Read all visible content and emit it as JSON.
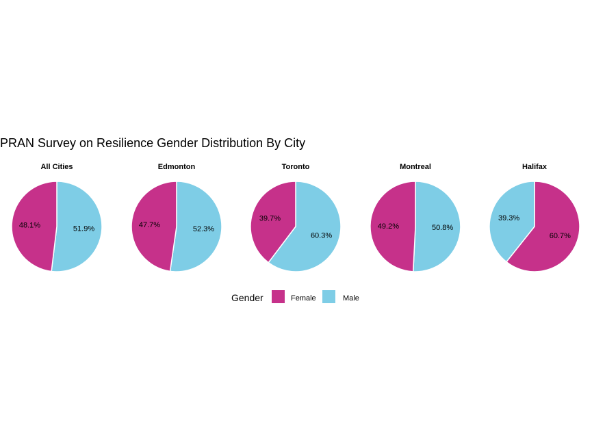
{
  "chart_data": {
    "type": "pie",
    "title": "PRAN Survey on Resilience Gender Distribution By City",
    "legend": {
      "title": "Gender",
      "placement": "bottom",
      "entries": [
        {
          "name": "Female",
          "color": "#C6318A"
        },
        {
          "name": "Male",
          "color": "#7ECDE6"
        }
      ]
    },
    "panels": [
      {
        "title": "All  Cities",
        "slices": [
          {
            "name": "Female",
            "value": 48.1,
            "label": "48.1%"
          },
          {
            "name": "Male",
            "value": 51.9,
            "label": "51.9%"
          }
        ]
      },
      {
        "title": "Edmonton",
        "slices": [
          {
            "name": "Female",
            "value": 47.7,
            "label": "47.7%"
          },
          {
            "name": "Male",
            "value": 52.3,
            "label": "52.3%"
          }
        ]
      },
      {
        "title": "Toronto",
        "slices": [
          {
            "name": "Female",
            "value": 39.7,
            "label": "39.7%"
          },
          {
            "name": "Male",
            "value": 60.3,
            "label": "60.3%"
          }
        ]
      },
      {
        "title": "Montreal",
        "slices": [
          {
            "name": "Female",
            "value": 49.2,
            "label": "49.2%"
          },
          {
            "name": "Male",
            "value": 50.8,
            "label": "50.8%"
          }
        ]
      },
      {
        "title": "Halifax",
        "slices": [
          {
            "name": "Male",
            "value": 39.3,
            "label": "39.3%"
          },
          {
            "name": "Female",
            "value": 60.7,
            "label": "60.7%"
          }
        ]
      }
    ]
  }
}
